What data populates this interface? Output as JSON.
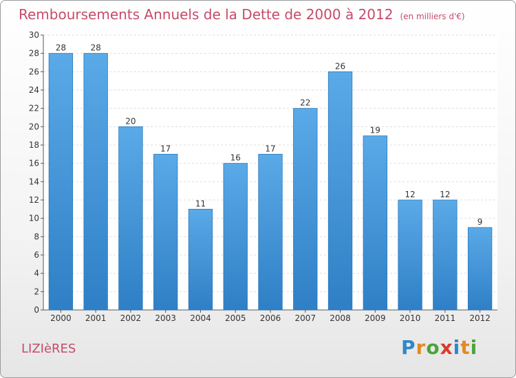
{
  "chart_data": {
    "type": "bar",
    "title": "Remboursements Annuels de la Dette de 2000 à 2012",
    "subtitle": "(en milliers d'€)",
    "categories": [
      "2000",
      "2001",
      "2002",
      "2003",
      "2004",
      "2005",
      "2006",
      "2007",
      "2008",
      "2009",
      "2010",
      "2011",
      "2012"
    ],
    "values": [
      28,
      28,
      20,
      17,
      11,
      16,
      17,
      22,
      26,
      19,
      12,
      12,
      9
    ],
    "ylim": [
      0,
      30
    ],
    "yticks": [
      0,
      2,
      4,
      6,
      8,
      10,
      12,
      14,
      16,
      18,
      20,
      22,
      24,
      26,
      28,
      30
    ],
    "grid": true,
    "bar_color": "#5aaae8",
    "bar_color_dark": "#2f7fc6"
  },
  "commune": "LIZIèRES",
  "logo": {
    "letters": [
      "P",
      "r",
      "o",
      "x",
      "i",
      "t",
      "i"
    ],
    "colors": [
      "#2e88c9",
      "#e38a1f",
      "#4aa53a",
      "#d93b2d",
      "#2e88c9",
      "#e38a1f",
      "#4aa53a"
    ]
  },
  "colors": {
    "title": "#c84a6a"
  }
}
